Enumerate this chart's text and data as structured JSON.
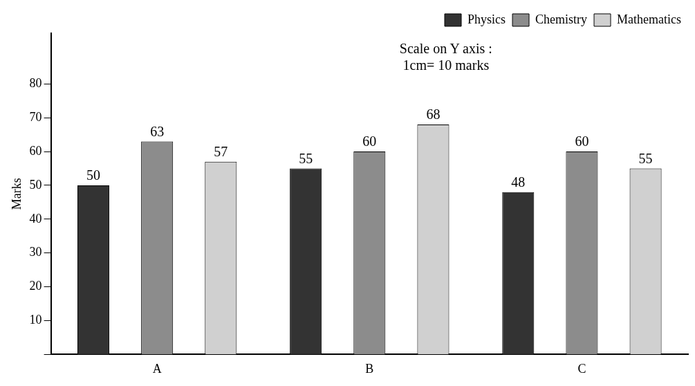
{
  "chart_data": {
    "type": "bar",
    "ylabel": "Marks",
    "categories": [
      "A",
      "B",
      "C"
    ],
    "series": [
      {
        "name": "Physics",
        "color": "#333333",
        "values": [
          50,
          55,
          48
        ]
      },
      {
        "name": "Chemistry",
        "color": "#8c8c8c",
        "values": [
          63,
          60,
          60
        ]
      },
      {
        "name": "Mathematics",
        "color": "#d0d0d0",
        "values": [
          57,
          68,
          55
        ]
      }
    ],
    "ylim": [
      0,
      95
    ],
    "yticks": [
      {
        "value": 0,
        "label": null
      },
      10,
      20,
      30,
      40,
      50,
      60,
      70,
      80
    ],
    "data_labels": true,
    "grid": false,
    "legend": "top right",
    "annotations": [
      "Scale on Y axis :",
      "1cm= 10 marks"
    ]
  }
}
